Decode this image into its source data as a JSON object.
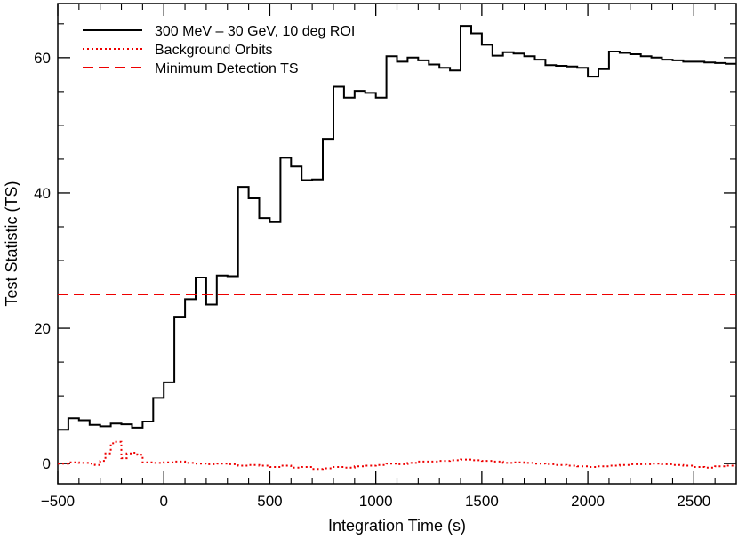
{
  "chart_data": {
    "type": "line",
    "xlabel": "Integration Time (s)",
    "ylabel": "Test Statistic (TS)",
    "xlim": [
      -500,
      2700
    ],
    "ylim": [
      -3,
      68
    ],
    "x_ticks": [
      -500,
      0,
      500,
      1000,
      1500,
      2000,
      2500
    ],
    "x_tick_labels": [
      "−500",
      "0",
      "500",
      "1000",
      "1500",
      "2000",
      "2500"
    ],
    "y_ticks": [
      0,
      20,
      40,
      60
    ],
    "y_tick_labels": [
      "0",
      "20",
      "40",
      "60"
    ],
    "legend_position": "top-left",
    "grid": false,
    "series": [
      {
        "name": "300 MeV – 30 GeV, 10 deg ROI",
        "color": "#000000",
        "style": "solid-step",
        "x": [
          -500,
          -450,
          -400,
          -350,
          -300,
          -250,
          -200,
          -150,
          -100,
          -50,
          0,
          50,
          100,
          150,
          200,
          250,
          300,
          350,
          400,
          450,
          500,
          550,
          600,
          650,
          700,
          750,
          800,
          850,
          900,
          950,
          1000,
          1050,
          1100,
          1150,
          1200,
          1250,
          1300,
          1350,
          1400,
          1450,
          1500,
          1550,
          1600,
          1650,
          1700,
          1750,
          1800,
          1850,
          1900,
          1950,
          2000,
          2050,
          2100,
          2150,
          2200,
          2250,
          2300,
          2350,
          2400,
          2450,
          2500,
          2550,
          2600,
          2650
        ],
        "y": [
          5.0,
          6.7,
          6.4,
          5.7,
          5.5,
          5.9,
          5.8,
          5.3,
          6.2,
          9.7,
          12.0,
          21.7,
          24.3,
          27.5,
          23.5,
          27.8,
          27.7,
          40.9,
          39.2,
          36.3,
          35.7,
          45.2,
          43.9,
          41.9,
          42.0,
          48.0,
          55.7,
          54.1,
          55.1,
          54.8,
          54.1,
          60.2,
          59.4,
          60.0,
          59.6,
          59.0,
          58.5,
          58.1,
          64.7,
          63.6,
          61.9,
          60.3,
          60.8,
          60.6,
          60.2,
          59.7,
          58.9,
          58.8,
          58.7,
          58.5,
          57.2,
          58.3,
          60.9,
          60.7,
          60.5,
          60.2,
          60.0,
          59.7,
          59.6,
          59.4,
          59.4,
          59.3,
          59.2,
          59.1
        ]
      },
      {
        "name": "Background Orbits",
        "color": "#ee0000",
        "style": "dotted-step",
        "x": [
          -500,
          -450,
          -400,
          -350,
          -325,
          -300,
          -275,
          -250,
          -225,
          -200,
          -175,
          -150,
          -125,
          -100,
          -50,
          0,
          50,
          100,
          150,
          200,
          250,
          300,
          350,
          400,
          450,
          500,
          550,
          600,
          650,
          700,
          750,
          800,
          850,
          900,
          950,
          1000,
          1050,
          1100,
          1150,
          1200,
          1250,
          1300,
          1350,
          1400,
          1450,
          1500,
          1550,
          1600,
          1650,
          1700,
          1750,
          1800,
          1850,
          1900,
          1950,
          2000,
          2050,
          2100,
          2150,
          2200,
          2250,
          2300,
          2350,
          2400,
          2450,
          2500,
          2550,
          2600,
          2650
        ],
        "y": [
          0.0,
          0.2,
          0.1,
          0.0,
          -0.2,
          0.4,
          1.5,
          3.0,
          3.2,
          0.8,
          1.5,
          1.6,
          1.3,
          0.2,
          0.1,
          0.2,
          0.3,
          0.1,
          0.0,
          -0.1,
          0.0,
          -0.1,
          -0.3,
          -0.2,
          -0.3,
          -0.5,
          -0.3,
          -0.6,
          -0.5,
          -0.8,
          -0.7,
          -0.5,
          -0.6,
          -0.4,
          -0.3,
          -0.2,
          0.0,
          -0.1,
          0.1,
          0.3,
          0.3,
          0.4,
          0.5,
          0.6,
          0.5,
          0.4,
          0.3,
          0.1,
          0.2,
          0.1,
          0.0,
          -0.1,
          -0.2,
          -0.3,
          -0.4,
          -0.5,
          -0.4,
          -0.3,
          -0.2,
          -0.1,
          -0.1,
          0.0,
          -0.1,
          -0.2,
          -0.3,
          -0.5,
          -0.6,
          -0.4,
          -0.3
        ]
      },
      {
        "name": "Minimum Detection TS",
        "color": "#ee0000",
        "style": "dashed",
        "x": [
          -500,
          2700
        ],
        "y": [
          25,
          25
        ]
      }
    ]
  }
}
